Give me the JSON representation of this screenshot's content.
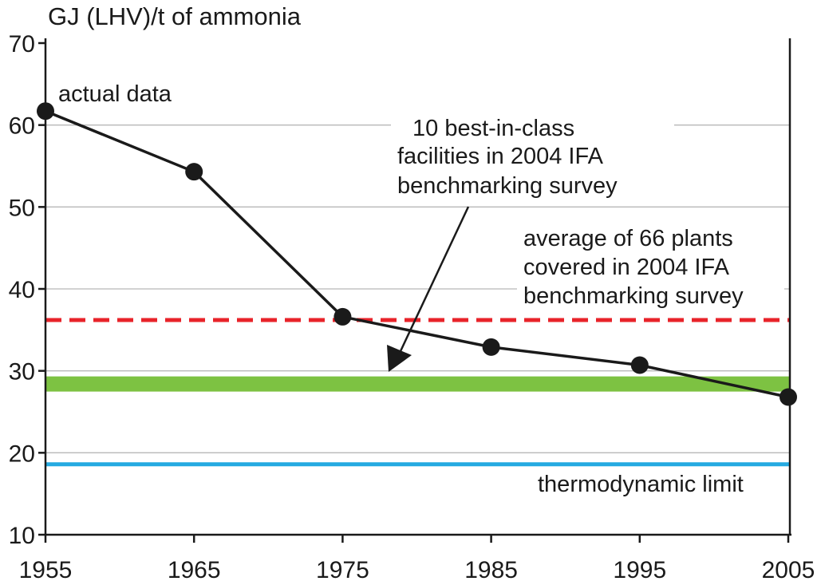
{
  "chart_data": {
    "type": "line",
    "ylabel": "GJ (LHV)/t of ammonia",
    "xlim": [
      1955,
      2005
    ],
    "ylim": [
      10,
      70
    ],
    "x_ticks": [
      "1955",
      "1965",
      "1975",
      "1985",
      "1995",
      "2005"
    ],
    "y_ticks": [
      "10",
      "20",
      "30",
      "40",
      "50",
      "60",
      "70"
    ],
    "gridlines": [
      20,
      30,
      40,
      50,
      60
    ],
    "series": [
      {
        "name": "actual data",
        "color": "#1a1a1a",
        "points": [
          {
            "x": 1955,
            "y": 61.7
          },
          {
            "x": 1965,
            "y": 54.3
          },
          {
            "x": 1975,
            "y": 36.6
          },
          {
            "x": 1985,
            "y": 32.9
          },
          {
            "x": 1995,
            "y": 30.7
          },
          {
            "x": 2005,
            "y": 26.8
          }
        ]
      }
    ],
    "reference_lines": [
      {
        "label": "average of 66 plants covered in 2004 IFA benchmarking survey",
        "value": 36.2,
        "color": "#e8232a",
        "style": "dashed"
      },
      {
        "label": "10 best-in-class facilities in 2004 IFA benchmarking survey",
        "value": 28.4,
        "color": "#7dc242",
        "style": "band"
      },
      {
        "label": "thermodynamic limit",
        "value": 18.6,
        "color": "#25aae1",
        "style": "solid"
      }
    ],
    "annotations": {
      "actual": "actual data",
      "best_lines": [
        "10 best-in-class",
        "facilities in 2004 IFA",
        "benchmarking survey"
      ],
      "avg_lines": [
        "average of 66 plants",
        "covered in 2004 IFA",
        "benchmarking survey"
      ],
      "thermo": "thermodynamic limit"
    }
  }
}
